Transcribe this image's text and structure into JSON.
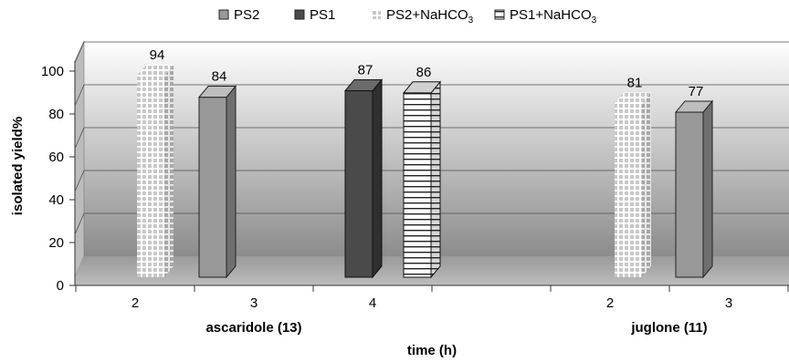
{
  "chart_data": {
    "type": "bar",
    "style": "3d-column",
    "ylabel": "isolated yield%",
    "xlabel": "time (h)",
    "ylim": [
      0,
      100
    ],
    "yticks": [
      0,
      20,
      40,
      60,
      80,
      100
    ],
    "grid": true,
    "legend_position": "top",
    "legend": [
      {
        "name": "PS2",
        "color": "#999999",
        "pattern": "solid"
      },
      {
        "name": "PS1",
        "color": "#4a4a4a",
        "pattern": "solid"
      },
      {
        "name": "PS2+NaHCO",
        "sub": "3",
        "color": "#cfcfcf",
        "pattern": "grid"
      },
      {
        "name": "PS1+NaHCO",
        "sub": "3",
        "color": "#ffffff",
        "pattern": "hlines"
      }
    ],
    "groups": [
      {
        "label": "ascaridole (13)",
        "ticks": [
          "2",
          "3",
          "4"
        ]
      },
      {
        "label": "juglone (11)",
        "ticks": [
          "2",
          "3"
        ]
      }
    ],
    "bars": [
      {
        "series": "PS2+NaHCO3",
        "group": "ascaridole (13)",
        "time": "2",
        "value": 94,
        "label": "94"
      },
      {
        "series": "PS2",
        "group": "ascaridole (13)",
        "time": "3",
        "value": 84,
        "label": "84"
      },
      {
        "series": "PS1",
        "group": "ascaridole (13)",
        "time": "4",
        "value": 87,
        "label": "87"
      },
      {
        "series": "PS1+NaHCO3",
        "group": "ascaridole (13)",
        "time": "4",
        "value": 86,
        "label": "86"
      },
      {
        "series": "PS2+NaHCO3",
        "group": "juglone (11)",
        "time": "2",
        "value": 81,
        "label": "81"
      },
      {
        "series": "PS2",
        "group": "juglone (11)",
        "time": "3",
        "value": 77,
        "label": "77"
      }
    ]
  }
}
